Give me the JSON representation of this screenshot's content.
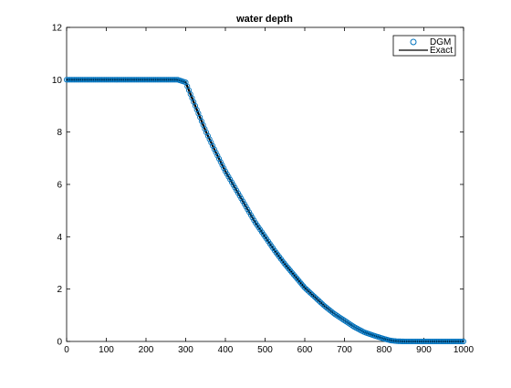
{
  "chart_data": {
    "type": "line",
    "title": "water depth",
    "xlabel": "",
    "ylabel": "",
    "xlim": [
      0,
      1000
    ],
    "ylim": [
      0,
      12
    ],
    "xticks": [
      0,
      100,
      200,
      300,
      400,
      500,
      600,
      700,
      800,
      900,
      1000
    ],
    "yticks": [
      0,
      2,
      4,
      6,
      8,
      10,
      12
    ],
    "grid": false,
    "legend_position": "top-right",
    "series": [
      {
        "name": "DGM",
        "style": "markers",
        "marker": "circle-open",
        "color": "#0072BD",
        "x": [
          0,
          50,
          100,
          150,
          200,
          250,
          280,
          300,
          320,
          350,
          375,
          400,
          425,
          450,
          475,
          500,
          525,
          550,
          575,
          600,
          625,
          650,
          675,
          700,
          725,
          750,
          775,
          800,
          815,
          830,
          850,
          900,
          950,
          1000
        ],
        "y": [
          10.0,
          10.0,
          10.0,
          10.0,
          10.0,
          10.0,
          10.0,
          9.9,
          9.15,
          8.05,
          7.25,
          6.5,
          5.85,
          5.2,
          4.55,
          4.0,
          3.45,
          2.95,
          2.5,
          2.05,
          1.7,
          1.35,
          1.05,
          0.8,
          0.55,
          0.35,
          0.22,
          0.1,
          0.04,
          0.01,
          0.0,
          0.0,
          0.0,
          0.0
        ]
      },
      {
        "name": "Exact",
        "style": "line",
        "color": "#000000",
        "x": [
          0,
          280,
          300,
          320,
          350,
          375,
          400,
          425,
          450,
          475,
          500,
          525,
          550,
          575,
          600,
          625,
          650,
          675,
          700,
          725,
          750,
          775,
          800,
          820,
          830,
          850,
          900,
          950,
          1000
        ],
        "y": [
          10.0,
          10.0,
          9.9,
          9.15,
          8.05,
          7.25,
          6.5,
          5.85,
          5.2,
          4.55,
          4.0,
          3.45,
          2.95,
          2.5,
          2.05,
          1.7,
          1.35,
          1.05,
          0.8,
          0.55,
          0.35,
          0.22,
          0.1,
          0.04,
          0.02,
          0.0,
          0.0,
          0.0,
          0.0
        ]
      }
    ]
  }
}
